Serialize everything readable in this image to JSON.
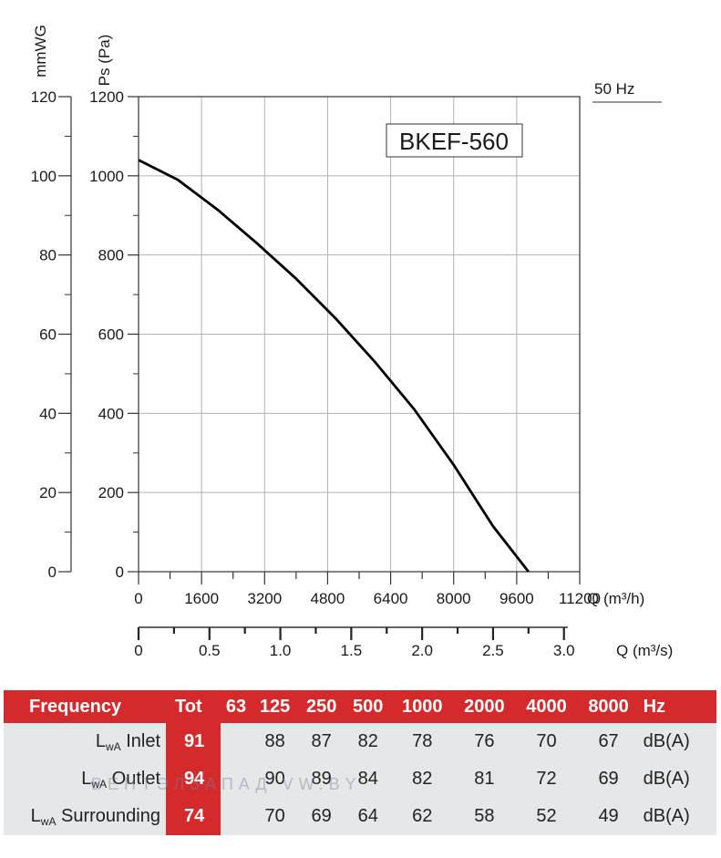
{
  "chart_data": {
    "type": "line",
    "title": "BKEF-560",
    "frequency_label": "50 Hz",
    "left_axis_label": "mmWG",
    "left_axis_ticks": [
      "0",
      "20",
      "40",
      "60",
      "80",
      "100",
      "120"
    ],
    "ylabel": "Ps (Pa)",
    "y_ticks": [
      "0",
      "200",
      "400",
      "600",
      "800",
      "1000",
      "1200"
    ],
    "ylim": [
      0,
      1200
    ],
    "xlabel": "Q (m³/h)",
    "x_ticks": [
      "0",
      "1600",
      "3200",
      "4800",
      "6400",
      "8000",
      "9600",
      "11200"
    ],
    "xlim": [
      0,
      11200
    ],
    "x2label": "Q (m³/s)",
    "x2_ticks": [
      "0",
      "0.5",
      "1.0",
      "1.5",
      "2.0",
      "2.5",
      "3.0"
    ],
    "grid": true,
    "series": [
      {
        "x": [
          0,
          1000,
          2000,
          3000,
          4000,
          5000,
          6000,
          7000,
          8000,
          9000,
          9900
        ],
        "y": [
          1040,
          990,
          915,
          830,
          740,
          640,
          530,
          410,
          270,
          115,
          0
        ]
      }
    ]
  },
  "noise_table": {
    "header": [
      "Frequency",
      "Tot",
      "63",
      "125",
      "250",
      "500",
      "1000",
      "2000",
      "4000",
      "8000",
      "Hz"
    ],
    "rows": [
      {
        "label": "L",
        "sub": "wA",
        "name": " Inlet",
        "tot": "91",
        "values": [
          "",
          "88",
          "87",
          "82",
          "78",
          "76",
          "70",
          "67"
        ],
        "unit": "dB(A)"
      },
      {
        "label": "L",
        "sub": "wA",
        "name": " Outlet",
        "tot": "94",
        "values": [
          "",
          "90",
          "89",
          "84",
          "82",
          "81",
          "72",
          "69"
        ],
        "unit": "dB(A)"
      },
      {
        "label": "L",
        "sub": "wA",
        "name": " Surrounding",
        "tot": "74",
        "values": [
          "",
          "70",
          "69",
          "64",
          "62",
          "58",
          "52",
          "49"
        ],
        "unit": "dB(A)"
      }
    ]
  },
  "watermark": "ВЕНТЭЛЗАПАД  VW.BY"
}
